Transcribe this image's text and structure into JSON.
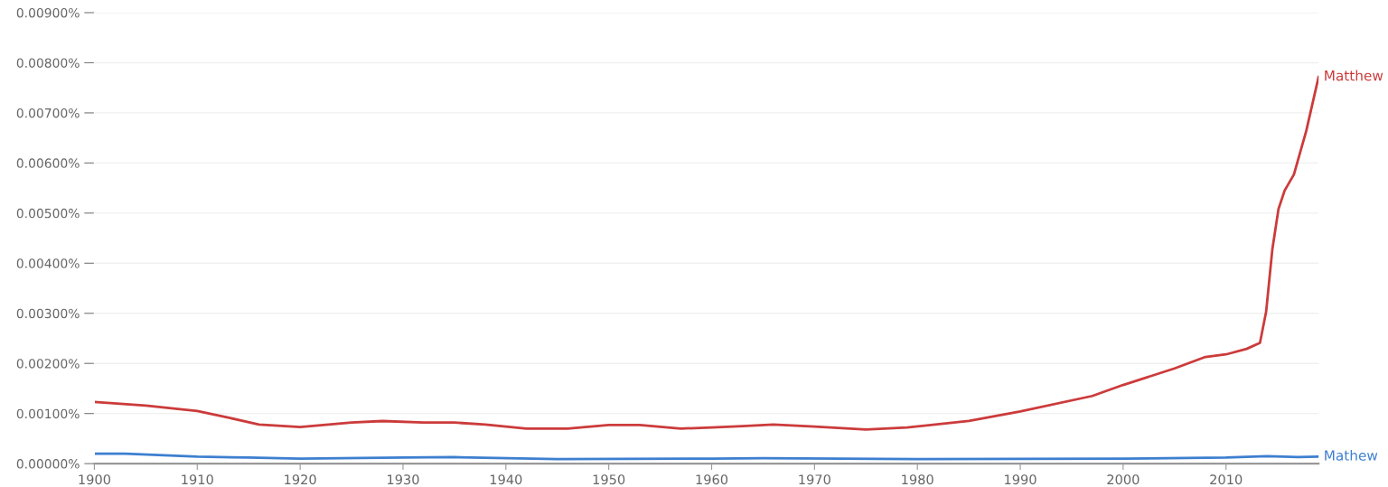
{
  "chart_data": {
    "type": "line",
    "xlim": [
      1900,
      2019
    ],
    "xticks": [
      1900,
      1910,
      1920,
      1930,
      1940,
      1950,
      1960,
      1970,
      1980,
      1990,
      2000,
      2010
    ],
    "ylim": [
      0,
      0.009
    ],
    "yticks": [
      {
        "value": 0,
        "label": "0.00000%"
      },
      {
        "value": 0.001,
        "label": "0.00100%"
      },
      {
        "value": 0.002,
        "label": "0.00200%"
      },
      {
        "value": 0.003,
        "label": "0.00300%"
      },
      {
        "value": 0.004,
        "label": "0.00400%"
      },
      {
        "value": 0.005,
        "label": "0.00500%"
      },
      {
        "value": 0.006,
        "label": "0.00600%"
      },
      {
        "value": 0.007,
        "label": "0.00700%"
      },
      {
        "value": 0.008,
        "label": "0.00800%"
      },
      {
        "value": 0.009,
        "label": "0.00900%"
      }
    ],
    "grid": "y",
    "legend": false,
    "marker": "none",
    "line_style": "solid",
    "series": [
      {
        "name": "Matthew",
        "color": "#cc3b3b",
        "x": [
          1900,
          1905,
          1910,
          1913,
          1916,
          1920,
          1925,
          1928,
          1932,
          1935,
          1938,
          1942,
          1946,
          1950,
          1953,
          1957,
          1960,
          1963,
          1966,
          1970,
          1975,
          1979,
          1985,
          1990,
          1997,
          2000,
          2005,
          2008,
          2010,
          2012,
          2013.3,
          2013.9,
          2014.5,
          2015.1,
          2015.7,
          2016.6,
          2017.8,
          2019
        ],
        "values": [
          0.00123,
          0.00116,
          0.00105,
          0.00092,
          0.00078,
          0.00073,
          0.00082,
          0.00085,
          0.00082,
          0.00082,
          0.00078,
          0.0007,
          0.0007,
          0.00077,
          0.00077,
          0.0007,
          0.00072,
          0.00075,
          0.00078,
          0.00074,
          0.00068,
          0.00072,
          0.00085,
          0.00104,
          0.00135,
          0.00157,
          0.0019,
          0.00213,
          0.00218,
          0.00229,
          0.00241,
          0.00303,
          0.00427,
          0.00508,
          0.00545,
          0.00577,
          0.00664,
          0.00772
        ]
      },
      {
        "name": "Mathew",
        "color": "#3d7fd0",
        "x": [
          1900,
          1903,
          1910,
          1915,
          1920,
          1930,
          1935,
          1945,
          1960,
          1965,
          1980,
          2000,
          2010,
          2014,
          2017,
          2019
        ],
        "values": [
          0.0002,
          0.0002,
          0.00014,
          0.00012,
          0.0001,
          0.00012,
          0.00013,
          9e-05,
          0.0001,
          0.00011,
          9e-05,
          0.0001,
          0.00012,
          0.00015,
          0.00013,
          0.00014
        ]
      }
    ]
  }
}
